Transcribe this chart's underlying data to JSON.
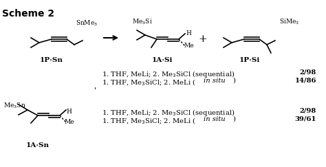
{
  "title": "Scheme 2",
  "bg_color": "#ffffff",
  "label_1PSn": "1P·Sn",
  "label_1ASi": "1A·Si",
  "label_1PSi": "1P·Si",
  "label_1ASn": "1A·Sn",
  "text_color": "#000000",
  "figsize": [
    4.74,
    2.43
  ],
  "dpi": 100
}
